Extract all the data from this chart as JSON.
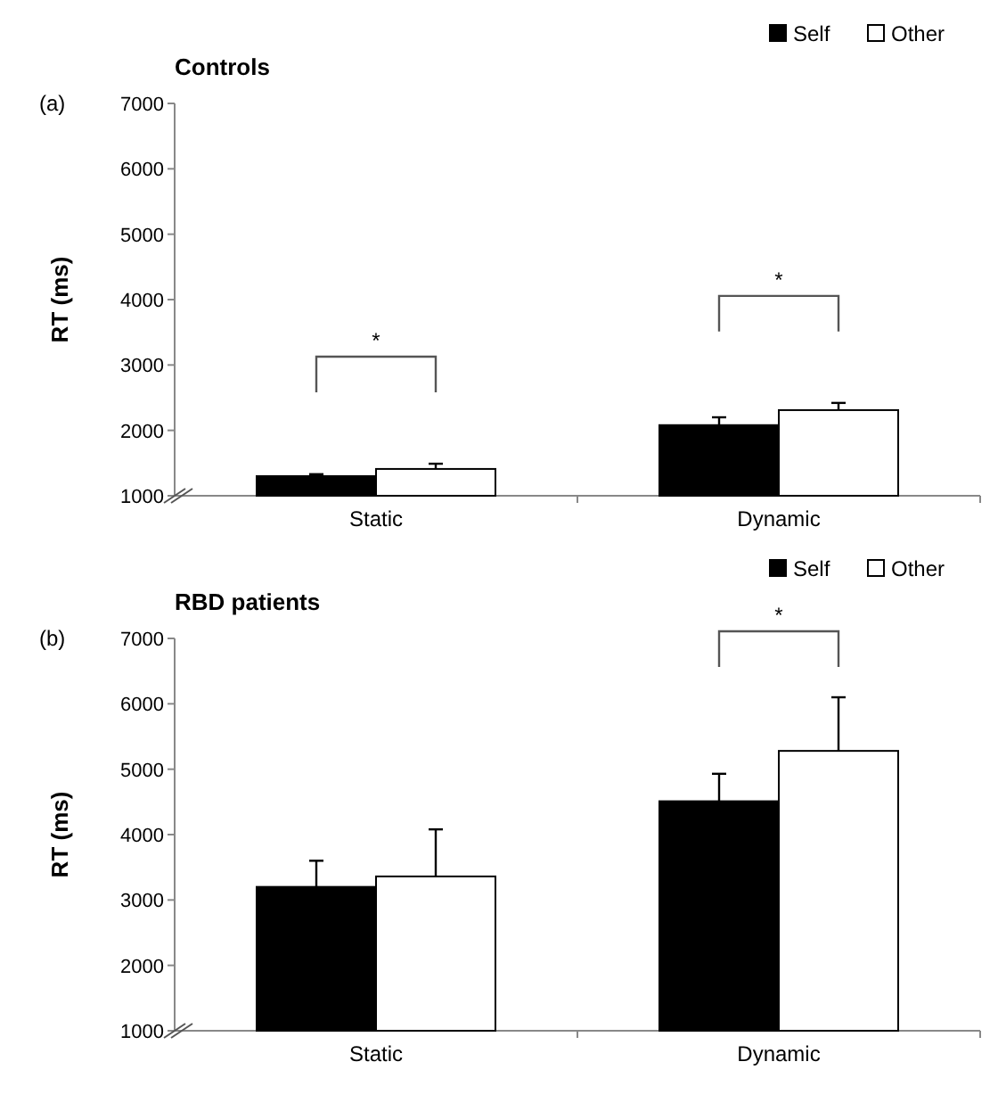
{
  "chart_data": [
    {
      "type": "bar",
      "title": "Controls",
      "ylabel": "RT (ms)",
      "categories": [
        "Static",
        "Dynamic"
      ],
      "series": [
        {
          "name": "Self",
          "color": "#000000",
          "values": [
            1300,
            2080
          ],
          "errors": [
            [
              1300,
              1330
            ],
            [
              2080,
              2200
            ]
          ]
        },
        {
          "name": "Other",
          "color": "#ffffff",
          "values": [
            1410,
            2310
          ],
          "errors": [
            [
              1410,
              1490
            ],
            [
              2310,
              2420
            ]
          ]
        }
      ],
      "ylim": [
        1000,
        7000
      ],
      "yticks": [
        1000,
        2000,
        3000,
        4000,
        5000,
        6000,
        7000
      ],
      "legend": "top right",
      "grid": false,
      "annotations": [
        "(a)",
        "*",
        "*"
      ]
    },
    {
      "type": "bar",
      "title": "RBD patients",
      "ylabel": "RT (ms)",
      "categories": [
        "Static",
        "Dynamic"
      ],
      "series": [
        {
          "name": "Self",
          "color": "#000000",
          "values": [
            3200,
            4510
          ],
          "errors": [
            [
              3200,
              3600
            ],
            [
              4510,
              4930
            ]
          ]
        },
        {
          "name": "Other",
          "color": "#ffffff",
          "values": [
            3360,
            5280
          ],
          "errors": [
            [
              3360,
              4080
            ],
            [
              5280,
              6100
            ]
          ]
        }
      ],
      "ylim": [
        1000,
        7000
      ],
      "yticks": [
        1000,
        2000,
        3000,
        4000,
        5000,
        6000,
        7000
      ],
      "legend": "top right",
      "grid": false,
      "annotations": [
        "(b)",
        "*"
      ]
    }
  ]
}
